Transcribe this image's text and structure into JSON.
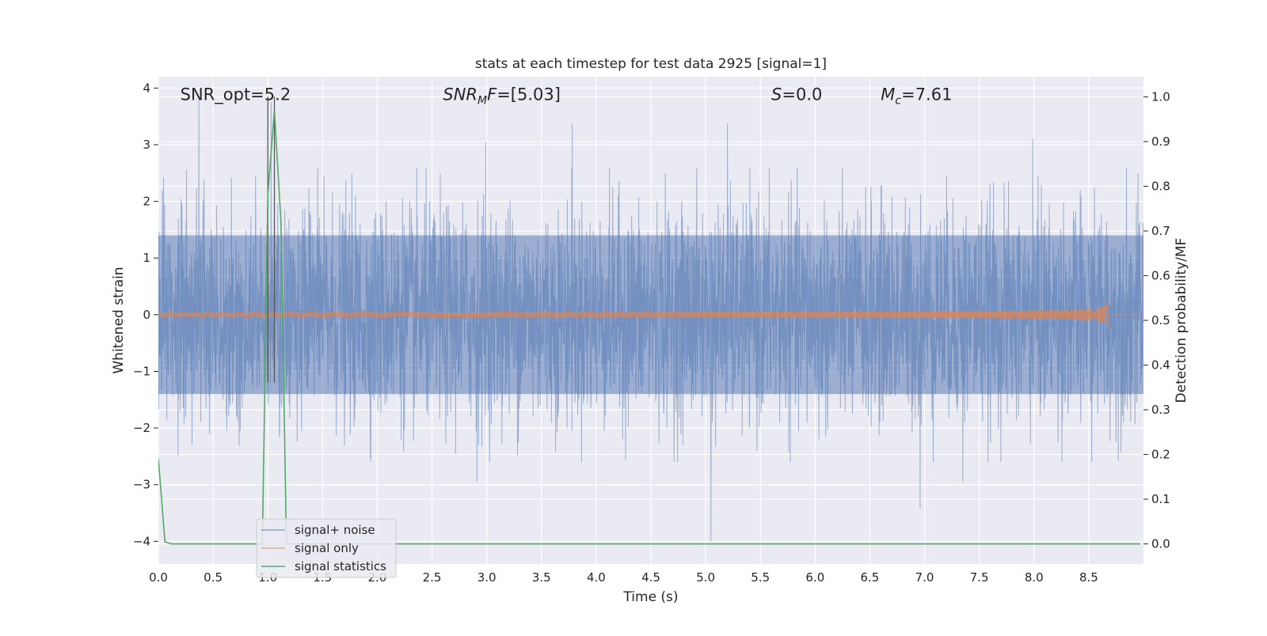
{
  "chart_data": {
    "type": "line",
    "title": "stats at each timestep for test data 2925 [signal=1]",
    "xlabel": "Time (s)",
    "ylabel_left": "Whitened strain",
    "ylabel_right": "Detection probability/MF",
    "xlim": [
      0.0,
      9.0
    ],
    "ylim_left": [
      -4.4,
      4.2
    ],
    "ylim_right": [
      -0.045,
      1.045
    ],
    "x_ticks": [
      "0.0",
      "0.5",
      "1.0",
      "1.5",
      "2.0",
      "2.5",
      "3.0",
      "3.5",
      "4.0",
      "4.5",
      "5.0",
      "5.5",
      "6.0",
      "6.5",
      "7.0",
      "7.5",
      "8.0",
      "8.5"
    ],
    "y_ticks_left": [
      "−4",
      "−3",
      "−2",
      "−1",
      "0",
      "1",
      "2",
      "3",
      "4"
    ],
    "y_ticks_right": [
      "0.0",
      "0.1",
      "0.2",
      "0.3",
      "0.4",
      "0.5",
      "0.6",
      "0.7",
      "0.8",
      "0.9",
      "1.0"
    ],
    "grid": true,
    "legend_position": "lower-left",
    "annotations": [
      {
        "id": "snr-opt",
        "text": "SNR_opt=5.2",
        "x": 0.2,
        "y": 3.9
      },
      {
        "id": "snr-mf",
        "text": "SNR_MF=[5.03]",
        "x": 2.6,
        "y": 3.9
      },
      {
        "id": "s-value",
        "text": "S=0.0",
        "x": 5.6,
        "y": 3.9
      },
      {
        "id": "mc-value",
        "text": "M_c=7.61",
        "x": 6.6,
        "y": 3.9
      }
    ],
    "vertical_markers": [
      1.0,
      1.06
    ],
    "series": [
      {
        "name": "signal+ noise",
        "color": "#4c72b0",
        "axis": "left",
        "kind": "noise",
        "core_amplitude": 1.4,
        "notable_spikes": [
          [
            0.37,
            3.85
          ],
          [
            1.03,
            3.75
          ],
          [
            2.99,
            3.05
          ],
          [
            3.78,
            3.38
          ],
          [
            5.2,
            3.38
          ],
          [
            7.99,
            3.1
          ],
          [
            5.05,
            -4.0
          ],
          [
            6.96,
            -3.42
          ],
          [
            2.91,
            -2.95
          ],
          [
            7.35,
            -2.95
          ]
        ]
      },
      {
        "name": "signal only",
        "color": "#dd8452",
        "axis": "left",
        "kind": "chirp",
        "end_time": 8.68,
        "max_amplitude": 0.62
      },
      {
        "name": "signal statistics",
        "color": "#55a868",
        "axis": "right",
        "kind": "line",
        "points": [
          [
            0.0,
            0.19
          ],
          [
            0.06,
            0.005
          ],
          [
            0.12,
            0.0
          ],
          [
            0.95,
            0.0
          ],
          [
            1.0,
            0.78
          ],
          [
            1.06,
            0.97
          ],
          [
            1.12,
            0.72
          ],
          [
            1.17,
            0.0
          ],
          [
            8.97,
            0.0
          ]
        ]
      }
    ]
  }
}
